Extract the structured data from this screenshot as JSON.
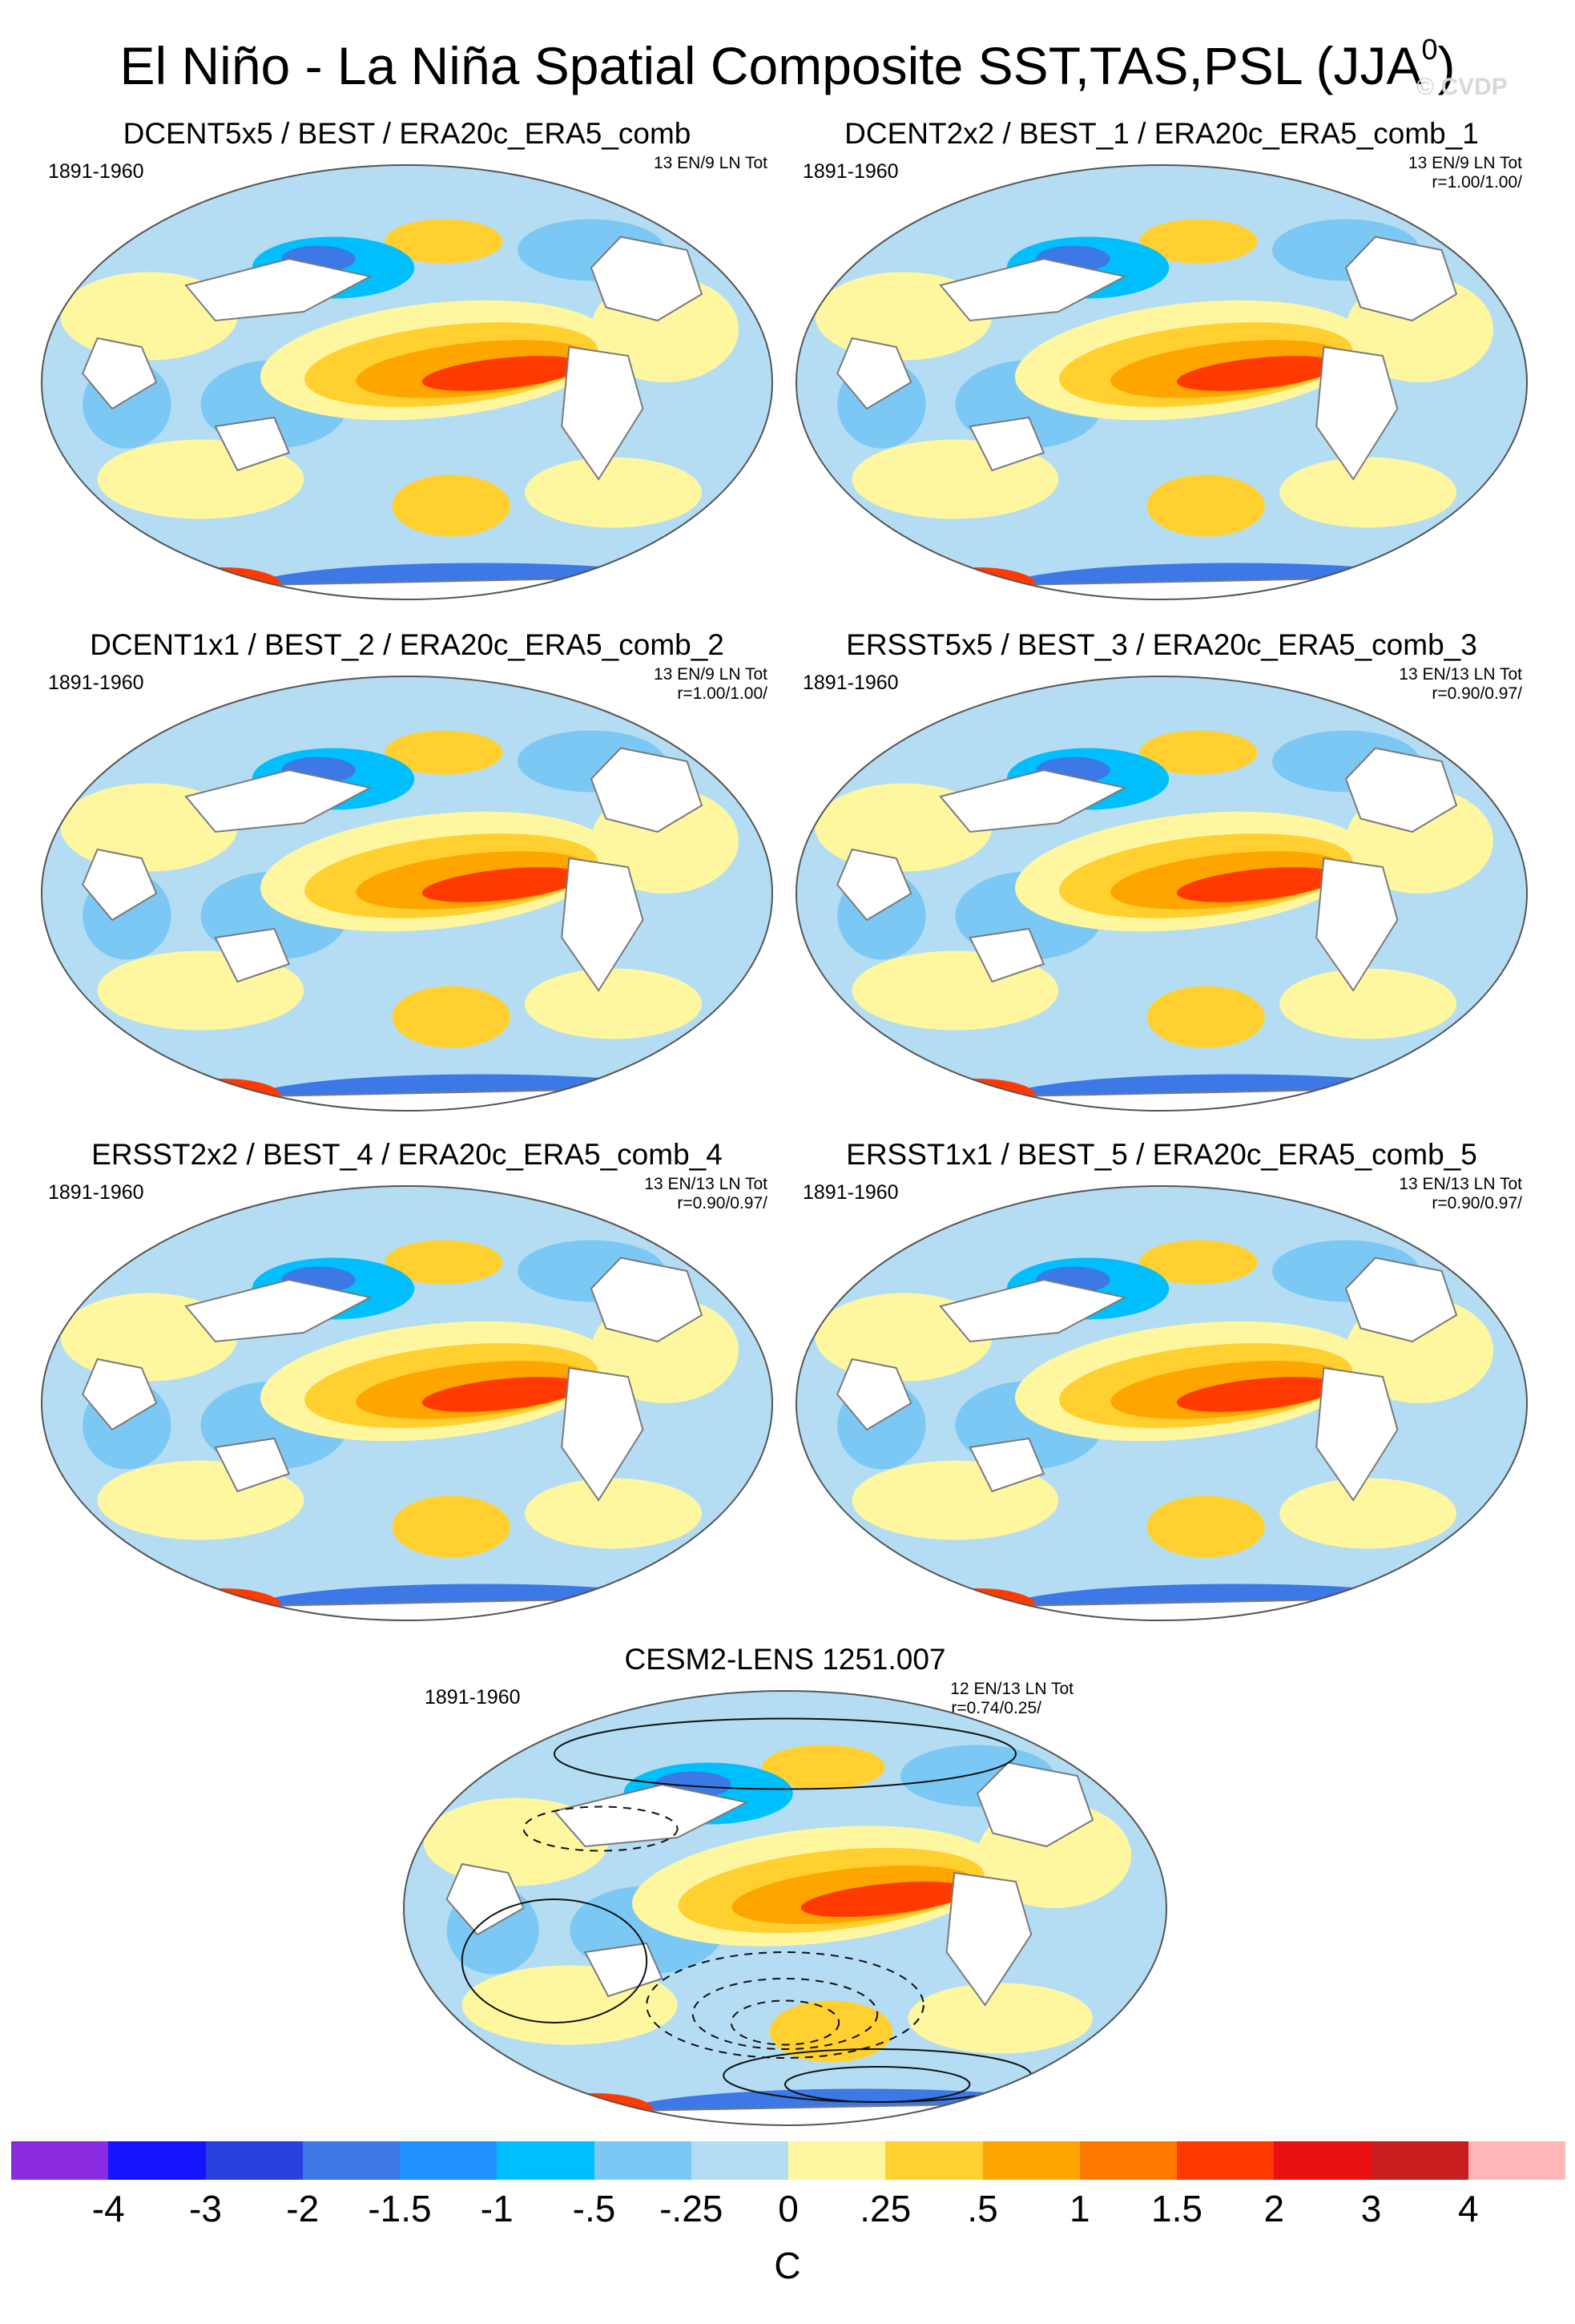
{
  "title_main": "El Niño - La Niña Spatial Composite SST,TAS,PSL (JJA",
  "title_sup": "0",
  "title_end": ")",
  "watermark": "© CVDP",
  "colors": {
    "ocean_light": "#b4ddf4",
    "land_mask": "#ffffff",
    "coast": "#7a7a7a",
    "contour": "#111111"
  },
  "panels": [
    {
      "title": "DCENT5x5 / BEST / ERA20c_ERA5_comb",
      "period": "1891-1960",
      "counts": "13 EN/9 LN Tot",
      "corr": ""
    },
    {
      "title": "DCENT2x2 / BEST_1 / ERA20c_ERA5_comb_1",
      "period": "1891-1960",
      "counts": "13 EN/9 LN Tot",
      "corr": "r=1.00/1.00/"
    },
    {
      "title": "DCENT1x1 / BEST_2 / ERA20c_ERA5_comb_2",
      "period": "1891-1960",
      "counts": "13 EN/9 LN Tot",
      "corr": "r=1.00/1.00/"
    },
    {
      "title": "ERSST5x5 / BEST_3 / ERA20c_ERA5_comb_3",
      "period": "1891-1960",
      "counts": "13 EN/13 LN Tot",
      "corr": "r=0.90/0.97/"
    },
    {
      "title": "ERSST2x2 / BEST_4 / ERA20c_ERA5_comb_4",
      "period": "1891-1960",
      "counts": "13 EN/13 LN Tot",
      "corr": "r=0.90/0.97/"
    },
    {
      "title": "ERSST1x1 / BEST_5 / ERA20c_ERA5_comb_5",
      "period": "1891-1960",
      "counts": "13 EN/13 LN Tot",
      "corr": "r=0.90/0.97/"
    },
    {
      "title": "CESM2-LENS 1251.007",
      "period": "1891-1960",
      "counts": "12 EN/13 LN Tot",
      "corr": "r=0.74/0.25/"
    }
  ],
  "colorbar": {
    "colors": [
      "#8a2be2",
      "#1414ff",
      "#2840e0",
      "#3c78e6",
      "#1e90ff",
      "#00bfff",
      "#7cc8f4",
      "#b4ddf4",
      "#fff7a0",
      "#ffd030",
      "#ffa500",
      "#ff7a00",
      "#ff3a00",
      "#e81010",
      "#c81e1e",
      "#ffb6b6"
    ],
    "labels": [
      "-4",
      "-3",
      "-2",
      "-1.5",
      "-1",
      "-.5",
      "-.25",
      "0",
      ".25",
      ".5",
      "1",
      "1.5",
      "2",
      "3",
      "4"
    ],
    "unit": "C"
  }
}
